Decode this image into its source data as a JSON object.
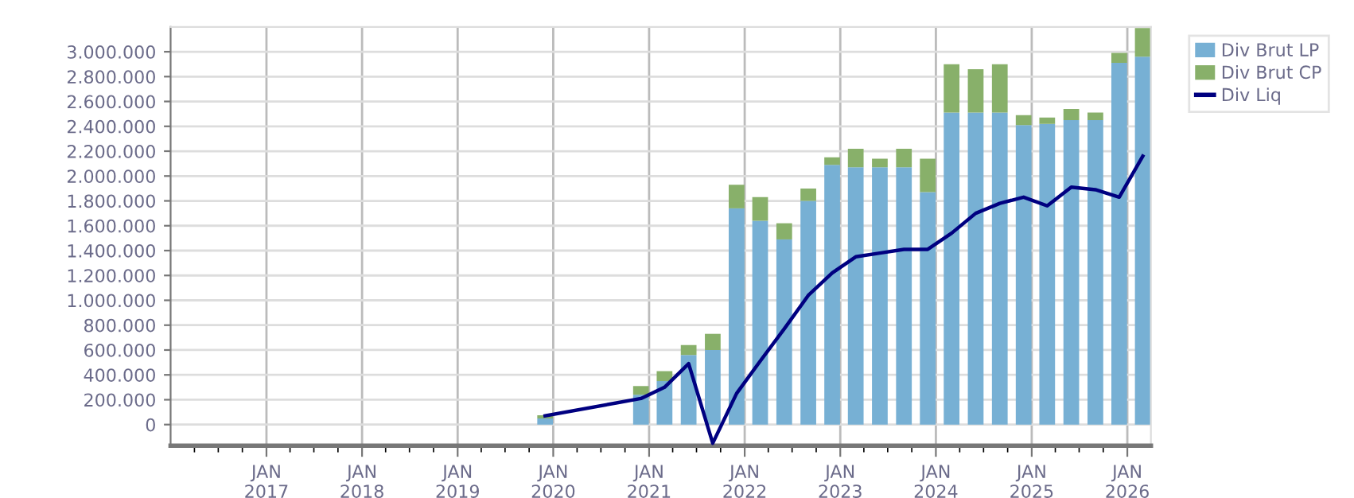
{
  "chart_data": {
    "type": "bar",
    "stacked": true,
    "x": [
      "2019-12",
      "2020-12",
      "2021-03",
      "2021-06",
      "2021-09",
      "2021-12",
      "2022-03",
      "2022-06",
      "2022-09",
      "2022-12",
      "2023-03",
      "2023-06",
      "2023-09",
      "2023-12",
      "2024-03",
      "2024-06",
      "2024-09",
      "2024-12",
      "2025-03",
      "2025-06",
      "2025-09",
      "2025-12",
      "2026-03"
    ],
    "series": [
      {
        "name": "Div Brut LP",
        "color": "#77b0d4",
        "values": [
          50000,
          240000,
          350000,
          560000,
          600000,
          1740000,
          1640000,
          1490000,
          1800000,
          2090000,
          2070000,
          2070000,
          2070000,
          1870000,
          2510000,
          2510000,
          2510000,
          2410000,
          2420000,
          2450000,
          2450000,
          2910000,
          2960000
        ]
      },
      {
        "name": "Div Brut CP",
        "color": "#88b06a",
        "values": [
          25000,
          70000,
          80000,
          80000,
          130000,
          190000,
          190000,
          130000,
          100000,
          60000,
          150000,
          70000,
          150000,
          270000,
          390000,
          350000,
          390000,
          80000,
          50000,
          90000,
          60000,
          80000,
          230000
        ]
      },
      {
        "name": "Div Liq",
        "type": "line",
        "color": "#000080",
        "values": [
          70000,
          210000,
          300000,
          490000,
          -150000,
          250000,
          510000,
          770000,
          1040000,
          1220000,
          1350000,
          1380000,
          1410000,
          1410000,
          1540000,
          1700000,
          1780000,
          1830000,
          1760000,
          1910000,
          1890000,
          1830000,
          2160000
        ]
      }
    ],
    "xlim": [
      "2016-01",
      "2026-04"
    ],
    "xticks": [
      {
        "value": "2016-04",
        "label": null
      },
      {
        "value": "2016-07",
        "label": null
      },
      {
        "value": "2016-10",
        "label": null
      },
      {
        "value": "2017-01",
        "label": "JAN\n2017"
      },
      {
        "value": "2017-04",
        "label": null
      },
      {
        "value": "2017-07",
        "label": null
      },
      {
        "value": "2017-10",
        "label": null
      },
      {
        "value": "2018-01",
        "label": "JAN\n2018"
      },
      {
        "value": "2018-04",
        "label": null
      },
      {
        "value": "2018-07",
        "label": null
      },
      {
        "value": "2018-10",
        "label": null
      },
      {
        "value": "2019-01",
        "label": "JAN\n2019"
      },
      {
        "value": "2019-04",
        "label": null
      },
      {
        "value": "2019-07",
        "label": null
      },
      {
        "value": "2019-10",
        "label": null
      },
      {
        "value": "2020-01",
        "label": "JAN\n2020"
      },
      {
        "value": "2020-04",
        "label": null
      },
      {
        "value": "2020-07",
        "label": null
      },
      {
        "value": "2020-10",
        "label": null
      },
      {
        "value": "2021-01",
        "label": "JAN\n2021"
      },
      {
        "value": "2021-04",
        "label": null
      },
      {
        "value": "2021-07",
        "label": null
      },
      {
        "value": "2021-10",
        "label": null
      },
      {
        "value": "2022-01",
        "label": "JAN\n2022"
      },
      {
        "value": "2022-04",
        "label": null
      },
      {
        "value": "2022-07",
        "label": null
      },
      {
        "value": "2022-10",
        "label": null
      },
      {
        "value": "2023-01",
        "label": "JAN\n2023"
      },
      {
        "value": "2023-04",
        "label": null
      },
      {
        "value": "2023-07",
        "label": null
      },
      {
        "value": "2023-10",
        "label": null
      },
      {
        "value": "2024-01",
        "label": "JAN\n2024"
      },
      {
        "value": "2024-04",
        "label": null
      },
      {
        "value": "2024-07",
        "label": null
      },
      {
        "value": "2024-10",
        "label": null
      },
      {
        "value": "2025-01",
        "label": "JAN\n2025"
      },
      {
        "value": "2025-04",
        "label": null
      },
      {
        "value": "2025-07",
        "label": null
      },
      {
        "value": "2025-10",
        "label": null
      },
      {
        "value": "2026-01",
        "label": "JAN\n2026"
      }
    ],
    "ylim": [
      -170000,
      3200000
    ],
    "yticks": [
      0,
      {
        "value": 200000,
        "label": "200.000"
      },
      {
        "value": 400000,
        "label": "400.000"
      },
      {
        "value": 600000,
        "label": "600.000"
      },
      {
        "value": 800000,
        "label": "800.000"
      },
      {
        "value": 1000000,
        "label": "1.000.000"
      },
      {
        "value": 1200000,
        "label": "1.200.000"
      },
      {
        "value": 1400000,
        "label": "1.400.000"
      },
      {
        "value": 1600000,
        "label": "1.600.000"
      },
      {
        "value": 1800000,
        "label": "1.800.000"
      },
      {
        "value": 2000000,
        "label": "2.000.000"
      },
      {
        "value": 2200000,
        "label": "2.200.000"
      },
      {
        "value": 2400000,
        "label": "2.400.000"
      },
      {
        "value": 2600000,
        "label": "2.600.000"
      },
      {
        "value": 2800000,
        "label": "2.800.000"
      },
      {
        "value": 3000000,
        "label": "3.000.000"
      }
    ],
    "grid": true,
    "legend": "top right"
  }
}
